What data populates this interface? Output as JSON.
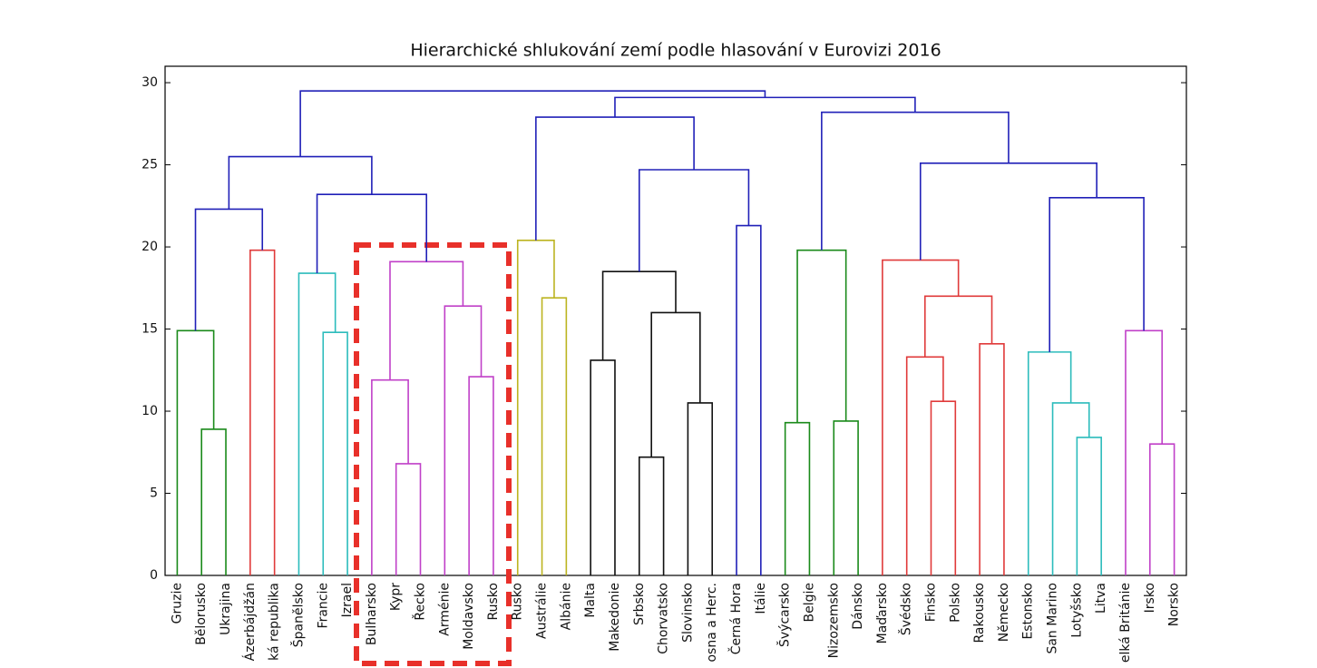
{
  "chart_data": {
    "type": "dendrogram",
    "title": "Hierarchické shlukování zemí podle hlasování v Eurovizi 2016",
    "labels": [
      "Gruzie",
      "Bělorusko",
      "Ukrajina",
      "Ázerbájdžán",
      "ká republika",
      "Španělsko",
      "Francie",
      "Izrael",
      "Bulharsko",
      "Kypr",
      "Řecko",
      "Arménie",
      "Moldavsko",
      "Rusko",
      "Rusko",
      "Austrálie",
      "Albánie",
      "Malta",
      "Makedonie",
      "Srbsko",
      "Chorvatsko",
      "Slovinsko",
      "osna a Herc.",
      "Černá Hora",
      "Itálie",
      "Švýcarsko",
      "Belgie",
      "Nizozemsko",
      "Dánsko",
      "Maďarsko",
      "Švédsko",
      "Finsko",
      "Polsko",
      "Rakousko",
      "Německo",
      "Estonsko",
      "San Marino",
      "Lotyšsko",
      "Litva",
      "elká Británie",
      "Irsko",
      "Norsko"
    ],
    "merges": [
      {
        "left": 1,
        "right": 2,
        "height": 8.9,
        "color": "#1a8a1a"
      },
      {
        "left": 0,
        "right": 42,
        "height": 14.9,
        "color": "#1a8a1a"
      },
      {
        "left": 3,
        "right": 4,
        "height": 19.8,
        "color": "#e03a3a"
      },
      {
        "left": 43,
        "right": 44,
        "height": 22.3,
        "color": "#2020b8"
      },
      {
        "left": 6,
        "right": 7,
        "height": 14.8,
        "color": "#2cbcbc"
      },
      {
        "left": 5,
        "right": 46,
        "height": 18.4,
        "color": "#2cbcbc"
      },
      {
        "left": 9,
        "right": 10,
        "height": 6.8,
        "color": "#c040c8"
      },
      {
        "left": 8,
        "right": 48,
        "height": 11.9,
        "color": "#c040c8"
      },
      {
        "left": 12,
        "right": 13,
        "height": 12.1,
        "color": "#c040c8"
      },
      {
        "left": 11,
        "right": 50,
        "height": 16.4,
        "color": "#c040c8"
      },
      {
        "left": 49,
        "right": 51,
        "height": 19.1,
        "color": "#c040c8"
      },
      {
        "left": 47,
        "right": 52,
        "height": 23.2,
        "color": "#2020b8"
      },
      {
        "left": 45,
        "right": 53,
        "height": 25.5,
        "color": "#2020b8"
      },
      {
        "left": 15,
        "right": 16,
        "height": 16.9,
        "color": "#bcb420"
      },
      {
        "left": 14,
        "right": 55,
        "height": 20.4,
        "color": "#bcb420"
      },
      {
        "left": 17,
        "right": 18,
        "height": 13.1,
        "color": "#111111"
      },
      {
        "left": 19,
        "right": 20,
        "height": 7.2,
        "color": "#111111"
      },
      {
        "left": 21,
        "right": 22,
        "height": 10.5,
        "color": "#111111"
      },
      {
        "left": 58,
        "right": 59,
        "height": 16.0,
        "color": "#111111"
      },
      {
        "left": 57,
        "right": 60,
        "height": 18.5,
        "color": "#111111"
      },
      {
        "left": 23,
        "right": 24,
        "height": 21.3,
        "color": "#2020b8"
      },
      {
        "left": 61,
        "right": 62,
        "height": 24.7,
        "color": "#2020b8"
      },
      {
        "left": 56,
        "right": 63,
        "height": 27.9,
        "color": "#2020b8"
      },
      {
        "left": 25,
        "right": 26,
        "height": 9.3,
        "color": "#1a8a1a"
      },
      {
        "left": 27,
        "right": 28,
        "height": 9.4,
        "color": "#1a8a1a"
      },
      {
        "left": 65,
        "right": 66,
        "height": 19.8,
        "color": "#1a8a1a"
      },
      {
        "left": 31,
        "right": 32,
        "height": 10.6,
        "color": "#e03a3a"
      },
      {
        "left": 30,
        "right": 68,
        "height": 13.3,
        "color": "#e03a3a"
      },
      {
        "left": 33,
        "right": 34,
        "height": 14.1,
        "color": "#e03a3a"
      },
      {
        "left": 69,
        "right": 70,
        "height": 17.0,
        "color": "#e03a3a"
      },
      {
        "left": 29,
        "right": 71,
        "height": 19.2,
        "color": "#e03a3a"
      },
      {
        "left": 37,
        "right": 38,
        "height": 8.4,
        "color": "#2cbcbc"
      },
      {
        "left": 36,
        "right": 73,
        "height": 10.5,
        "color": "#2cbcbc"
      },
      {
        "left": 35,
        "right": 74,
        "height": 13.6,
        "color": "#2cbcbc"
      },
      {
        "left": 40,
        "right": 41,
        "height": 8.0,
        "color": "#c040c8"
      },
      {
        "left": 39,
        "right": 76,
        "height": 14.9,
        "color": "#c040c8"
      },
      {
        "left": 75,
        "right": 77,
        "height": 23.0,
        "color": "#2020b8"
      },
      {
        "left": 72,
        "right": 78,
        "height": 25.1,
        "color": "#2020b8"
      },
      {
        "left": 67,
        "right": 79,
        "height": 28.2,
        "color": "#2020b8"
      },
      {
        "left": 64,
        "right": 80,
        "height": 29.1,
        "color": "#2020b8"
      },
      {
        "left": 54,
        "right": 81,
        "height": 29.5,
        "color": "#2020b8"
      }
    ],
    "ylim": [
      0,
      31
    ],
    "yticks": [
      0,
      5,
      10,
      15,
      20,
      25,
      30
    ]
  }
}
